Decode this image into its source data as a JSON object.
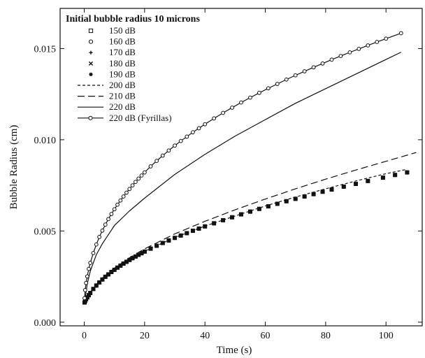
{
  "chart_data": {
    "type": "line",
    "title": "Initial bubble radius 10 microns",
    "xlabel": "Time (s)",
    "ylabel": "Bubble Radius (cm)",
    "xlim": [
      -8,
      112
    ],
    "ylim": [
      -0.0002,
      0.0172
    ],
    "x_ticks": [
      0,
      20,
      40,
      60,
      80,
      100
    ],
    "x_tick_labels": [
      "0",
      "20",
      "40",
      "60",
      "80",
      "100"
    ],
    "y_ticks": [
      0.0,
      0.005,
      0.01,
      0.015
    ],
    "y_tick_labels": [
      "0.000",
      "0.005",
      "0.010",
      "0.015"
    ],
    "grid": false,
    "legend_placement": "top-left",
    "series": [
      {
        "name": "150 dB",
        "line_style": "none",
        "marker": "square-open",
        "x": [
          0.1,
          0.3,
          0.6,
          1,
          1.5,
          2,
          3,
          4,
          5,
          6,
          7,
          8,
          9,
          10,
          11,
          12,
          13,
          14,
          15,
          16,
          17,
          18,
          19,
          20,
          22,
          24,
          26,
          28,
          30,
          32,
          34,
          36,
          38,
          40,
          43,
          46,
          49,
          52,
          55,
          58,
          61,
          64,
          67,
          70,
          73,
          76,
          79,
          82,
          86,
          90,
          94,
          99,
          103,
          107
        ],
        "y": [
          0.00108,
          0.00116,
          0.00126,
          0.00136,
          0.00148,
          0.0016,
          0.00182,
          0.00201,
          0.00218,
          0.00234,
          0.00249,
          0.00262,
          0.00275,
          0.00287,
          0.00299,
          0.0031,
          0.00321,
          0.00331,
          0.00341,
          0.00351,
          0.0036,
          0.00369,
          0.00378,
          0.00387,
          0.00403,
          0.00419,
          0.00434,
          0.00448,
          0.00462,
          0.00475,
          0.00488,
          0.00501,
          0.00513,
          0.00525,
          0.00542,
          0.00559,
          0.00575,
          0.00591,
          0.00606,
          0.00621,
          0.00635,
          0.00649,
          0.00663,
          0.00676,
          0.00689,
          0.00702,
          0.00715,
          0.00727,
          0.00743,
          0.00758,
          0.00774,
          0.00792,
          0.00807,
          0.00821
        ]
      },
      {
        "name": "160 dB",
        "line_style": "none",
        "marker": "circle-open",
        "x": [
          0.1,
          0.3,
          0.6,
          1,
          1.5,
          2,
          3,
          4,
          5,
          6,
          7,
          8,
          9,
          10,
          11,
          12,
          13,
          14,
          15,
          16,
          17,
          18,
          19,
          20,
          22,
          24,
          26,
          28,
          30,
          32,
          34,
          36,
          38,
          40,
          43,
          46,
          49,
          52,
          55,
          58,
          61,
          64,
          67,
          70,
          73,
          76,
          79,
          82,
          86,
          90,
          94,
          99,
          103,
          107
        ],
        "y": [
          0.00108,
          0.00116,
          0.00126,
          0.00136,
          0.00148,
          0.0016,
          0.00182,
          0.00201,
          0.00218,
          0.00234,
          0.00249,
          0.00262,
          0.00275,
          0.00287,
          0.00299,
          0.0031,
          0.00321,
          0.00331,
          0.00341,
          0.00351,
          0.0036,
          0.00369,
          0.00378,
          0.00387,
          0.00403,
          0.00419,
          0.00434,
          0.00448,
          0.00462,
          0.00475,
          0.00488,
          0.00501,
          0.00513,
          0.00525,
          0.00542,
          0.00559,
          0.00575,
          0.00591,
          0.00606,
          0.00621,
          0.00635,
          0.00649,
          0.00663,
          0.00676,
          0.00689,
          0.00702,
          0.00715,
          0.00727,
          0.00743,
          0.00758,
          0.00774,
          0.00792,
          0.00807,
          0.00821
        ]
      },
      {
        "name": "170 dB",
        "line_style": "none",
        "marker": "plus",
        "x": [
          0.1,
          0.3,
          0.6,
          1,
          1.5,
          2,
          3,
          4,
          5,
          6,
          7,
          8,
          9,
          10,
          11,
          12,
          13,
          14,
          15,
          16,
          17,
          18,
          19,
          20,
          22,
          24,
          26,
          28,
          30,
          32,
          34,
          36,
          38,
          40,
          43,
          46,
          49,
          52,
          55,
          58,
          61,
          64,
          67,
          70,
          73,
          76,
          79,
          82,
          86,
          90,
          94,
          99,
          103,
          107
        ],
        "y": [
          0.00108,
          0.00116,
          0.00126,
          0.00136,
          0.00148,
          0.0016,
          0.00182,
          0.00201,
          0.00218,
          0.00234,
          0.00249,
          0.00262,
          0.00275,
          0.00287,
          0.00299,
          0.0031,
          0.00321,
          0.00331,
          0.00341,
          0.00351,
          0.0036,
          0.00369,
          0.00378,
          0.00387,
          0.00403,
          0.00419,
          0.00434,
          0.00448,
          0.00462,
          0.00475,
          0.00488,
          0.00501,
          0.00513,
          0.00525,
          0.00542,
          0.00559,
          0.00575,
          0.00591,
          0.00606,
          0.00621,
          0.00635,
          0.00649,
          0.00663,
          0.00676,
          0.00689,
          0.00702,
          0.00715,
          0.00727,
          0.00743,
          0.00758,
          0.00774,
          0.00792,
          0.00807,
          0.00821
        ]
      },
      {
        "name": "180 dB",
        "line_style": "none",
        "marker": "x",
        "x": [
          0.1,
          0.3,
          0.6,
          1,
          1.5,
          2,
          3,
          4,
          5,
          6,
          7,
          8,
          9,
          10,
          11,
          12,
          13,
          14,
          15,
          16,
          17,
          18,
          19,
          20,
          22,
          24,
          26,
          28,
          30,
          32,
          34,
          36,
          38,
          40,
          43,
          46,
          49,
          52,
          55,
          58,
          61,
          64,
          67,
          70,
          73,
          76,
          79,
          82,
          86,
          90,
          94,
          99,
          103,
          107
        ],
        "y": [
          0.00108,
          0.00116,
          0.00126,
          0.00136,
          0.00148,
          0.0016,
          0.00182,
          0.00201,
          0.00218,
          0.00234,
          0.00249,
          0.00262,
          0.00275,
          0.00287,
          0.00299,
          0.0031,
          0.00321,
          0.00331,
          0.00341,
          0.00351,
          0.0036,
          0.00369,
          0.00378,
          0.00387,
          0.00403,
          0.00419,
          0.00434,
          0.00448,
          0.00462,
          0.00475,
          0.00488,
          0.00501,
          0.00513,
          0.00525,
          0.00542,
          0.00559,
          0.00575,
          0.00591,
          0.00606,
          0.00621,
          0.00635,
          0.00649,
          0.00663,
          0.00676,
          0.00689,
          0.00702,
          0.00715,
          0.00727,
          0.00743,
          0.00758,
          0.00774,
          0.00792,
          0.00807,
          0.00821
        ]
      },
      {
        "name": "190 dB",
        "line_style": "none",
        "marker": "asterisk",
        "x": [
          0.1,
          0.3,
          0.6,
          1,
          1.5,
          2,
          3,
          4,
          5,
          6,
          7,
          8,
          9,
          10,
          11,
          12,
          13,
          14,
          15,
          16,
          17,
          18,
          19,
          20,
          22,
          24,
          26,
          28,
          30,
          32,
          34,
          36,
          38,
          40,
          43,
          46,
          49,
          52,
          55,
          58,
          61,
          64,
          67,
          70,
          73,
          76,
          79,
          82,
          86,
          90,
          94,
          99,
          103,
          107
        ],
        "y": [
          0.00108,
          0.00116,
          0.00126,
          0.00136,
          0.00148,
          0.0016,
          0.00182,
          0.00201,
          0.00218,
          0.00234,
          0.00249,
          0.00262,
          0.00275,
          0.00287,
          0.00299,
          0.0031,
          0.00321,
          0.00331,
          0.00341,
          0.00351,
          0.0036,
          0.00369,
          0.00378,
          0.00387,
          0.00403,
          0.00419,
          0.00434,
          0.00448,
          0.00462,
          0.00475,
          0.00488,
          0.00501,
          0.00513,
          0.00525,
          0.00542,
          0.00559,
          0.00575,
          0.00591,
          0.00606,
          0.00621,
          0.00635,
          0.00649,
          0.00663,
          0.00676,
          0.00689,
          0.00702,
          0.00715,
          0.00727,
          0.00743,
          0.00758,
          0.00774,
          0.00792,
          0.00807,
          0.00821
        ]
      },
      {
        "name": "200 dB",
        "line_style": "short-dash",
        "marker": "none",
        "x": [
          0,
          1,
          2,
          4,
          6,
          8,
          10,
          15,
          20,
          30,
          40,
          50,
          60,
          70,
          80,
          90,
          100,
          107
        ],
        "y": [
          0.001,
          0.00137,
          0.00161,
          0.00202,
          0.00235,
          0.00263,
          0.00288,
          0.00342,
          0.00389,
          0.00464,
          0.00527,
          0.00582,
          0.00637,
          0.00686,
          0.00731,
          0.00774,
          0.00814,
          0.00838
        ]
      },
      {
        "name": "210 dB",
        "line_style": "long-dash",
        "marker": "none",
        "x": [
          0,
          1,
          2,
          4,
          6,
          8,
          10,
          15,
          20,
          30,
          40,
          50,
          60,
          70,
          80,
          90,
          100,
          110
        ],
        "y": [
          0.001,
          0.0014,
          0.00165,
          0.00207,
          0.00241,
          0.0027,
          0.00296,
          0.00353,
          0.00402,
          0.00484,
          0.00553,
          0.00616,
          0.00675,
          0.00731,
          0.00784,
          0.00834,
          0.00882,
          0.0093
        ]
      },
      {
        "name": "220 dB",
        "line_style": "solid",
        "marker": "none",
        "x": [
          0,
          1,
          2,
          4,
          6,
          8,
          10,
          15,
          20,
          30,
          40,
          50,
          60,
          70,
          80,
          90,
          100,
          105
        ],
        "y": [
          0.001,
          0.0021,
          0.0028,
          0.0037,
          0.0043,
          0.0048,
          0.0053,
          0.0061,
          0.0068,
          0.0081,
          0.0092,
          0.0102,
          0.0111,
          0.012,
          0.0128,
          0.0136,
          0.0144,
          0.0148
        ]
      },
      {
        "name": "220 dB (Fyrillas)",
        "line_style": "solid",
        "marker": "circle-open",
        "x": [
          0.1,
          0.3,
          0.6,
          1,
          1.5,
          2,
          3,
          4,
          5,
          6,
          7,
          8,
          9,
          10,
          11,
          12,
          13,
          14,
          15,
          16,
          17,
          18,
          19,
          20,
          22,
          24,
          26,
          28,
          30,
          32,
          34,
          36,
          38,
          40,
          43,
          46,
          49,
          52,
          55,
          58,
          61,
          64,
          67,
          70,
          73,
          76,
          79,
          82,
          85,
          88,
          91,
          94,
          97,
          100,
          105
        ],
        "y": [
          0.00132,
          0.00176,
          0.00215,
          0.00251,
          0.00292,
          0.00325,
          0.00379,
          0.00426,
          0.00467,
          0.00502,
          0.00535,
          0.00565,
          0.00593,
          0.00619,
          0.00644,
          0.00667,
          0.00689,
          0.0071,
          0.0073,
          0.0075,
          0.00769,
          0.00787,
          0.00804,
          0.00821,
          0.00854,
          0.00884,
          0.00913,
          0.00941,
          0.00968,
          0.00993,
          0.01017,
          0.01041,
          0.01063,
          0.01085,
          0.01117,
          0.01147,
          0.01176,
          0.01204,
          0.01231,
          0.01257,
          0.01282,
          0.01306,
          0.0133,
          0.01353,
          0.01375,
          0.01397,
          0.01418,
          0.01439,
          0.01459,
          0.01479,
          0.01498,
          0.01517,
          0.01536,
          0.01554,
          0.01584
        ]
      }
    ],
    "legend": {
      "title": "Initial bubble radius 10 microns",
      "entries": [
        {
          "series": 0,
          "label": "150 dB"
        },
        {
          "series": 1,
          "label": "160 dB"
        },
        {
          "series": 2,
          "label": "170 dB"
        },
        {
          "series": 3,
          "label": "180 dB"
        },
        {
          "series": 4,
          "label": "190 dB"
        },
        {
          "series": 5,
          "label": "200 dB"
        },
        {
          "series": 6,
          "label": "210 dB"
        },
        {
          "series": 7,
          "label": "220 dB"
        },
        {
          "series": 8,
          "label": "220 dB (Fyrillas)"
        }
      ]
    },
    "colors": {
      "ink": "#111111",
      "background": "#ffffff"
    }
  }
}
